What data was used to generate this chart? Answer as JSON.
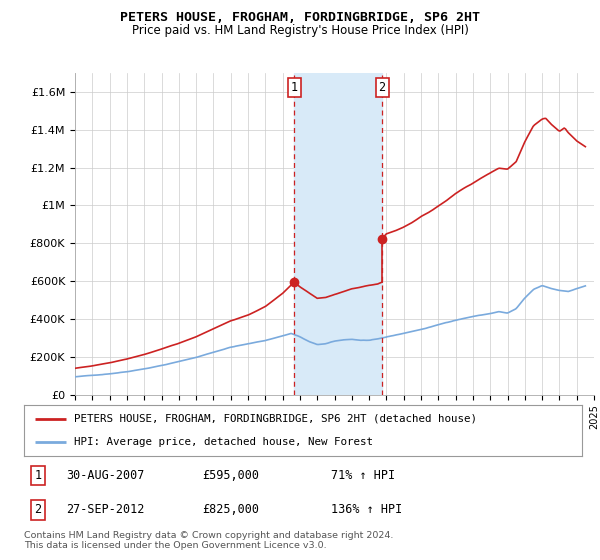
{
  "title": "PETERS HOUSE, FROGHAM, FORDINGBRIDGE, SP6 2HT",
  "subtitle": "Price paid vs. HM Land Registry's House Price Index (HPI)",
  "ylim": [
    0,
    1700000
  ],
  "yticks": [
    0,
    200000,
    400000,
    600000,
    800000,
    1000000,
    1200000,
    1400000,
    1600000
  ],
  "ytick_labels": [
    "£0",
    "£200K",
    "£400K",
    "£600K",
    "£800K",
    "£1M",
    "£1.2M",
    "£1.4M",
    "£1.6M"
  ],
  "legend_line1": "PETERS HOUSE, FROGHAM, FORDINGBRIDGE, SP6 2HT (detached house)",
  "legend_line2": "HPI: Average price, detached house, New Forest",
  "annotation1_date": "30-AUG-2007",
  "annotation1_price": "£595,000",
  "annotation1_pct": "71% ↑ HPI",
  "annotation2_date": "27-SEP-2012",
  "annotation2_price": "£825,000",
  "annotation2_pct": "136% ↑ HPI",
  "footnote": "Contains HM Land Registry data © Crown copyright and database right 2024.\nThis data is licensed under the Open Government Licence v3.0.",
  "hpi_color": "#7aaadd",
  "price_color": "#cc2222",
  "vline_color": "#cc2222",
  "span_color": "#d8eaf8",
  "point1_x": 2007.667,
  "point1_y": 595000,
  "point2_x": 2012.75,
  "point2_y": 825000,
  "vline1_x": 2007.667,
  "vline2_x": 2012.75,
  "xmin": 1995,
  "xmax": 2025
}
